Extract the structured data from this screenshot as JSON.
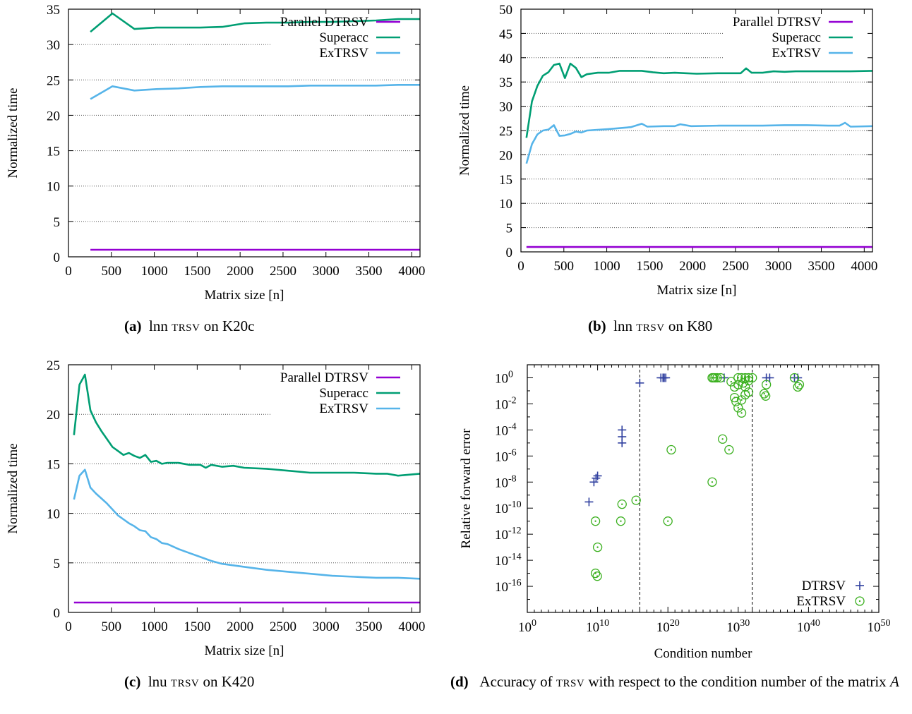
{
  "colors": {
    "parallel": "#9400d3",
    "superacc": "#009e73",
    "extrsv": "#56b4e9",
    "dtrsv": "#2f3f9f",
    "extrsv_marker": "#3bb01f"
  },
  "captions": [
    {
      "label": "(a)",
      "pre": "lnn ",
      "sc": "trsv",
      "post": " on K20c"
    },
    {
      "label": "(b)",
      "pre": "lnn ",
      "sc": "trsv",
      "post": " on K80"
    },
    {
      "label": "(c)",
      "pre": "lnu ",
      "sc": "trsv",
      "post": " on K420"
    },
    {
      "label": "(d)",
      "pre": "Accuracy of ",
      "sc": "trsv",
      "post": " with respect to the condition number of the matrix ",
      "italic": "A"
    }
  ],
  "chart_data": [
    {
      "type": "line",
      "xlabel": "Matrix size [n]",
      "ylabel": "Normalized time",
      "xlim": [
        0,
        4096
      ],
      "ylim": [
        0,
        35
      ],
      "xticks": [
        0,
        500,
        1000,
        1500,
        2000,
        2500,
        3000,
        3500,
        4000
      ],
      "yticks": [
        0,
        5,
        10,
        15,
        20,
        25,
        30,
        35
      ],
      "grid": "horizontal-dotted",
      "legend": "top-right",
      "series": [
        {
          "name": "Parallel DTRSV",
          "color_key": "parallel",
          "points": [
            [
              256,
              1.0
            ],
            [
              4096,
              1.0
            ]
          ]
        },
        {
          "name": "Superacc",
          "color_key": "superacc",
          "points": [
            [
              256,
              31.8
            ],
            [
              512,
              34.4
            ],
            [
              768,
              32.2
            ],
            [
              1024,
              32.4
            ],
            [
              1280,
              32.4
            ],
            [
              1536,
              32.4
            ],
            [
              1792,
              32.5
            ],
            [
              2048,
              33.0
            ],
            [
              2304,
              33.1
            ],
            [
              2560,
              33.1
            ],
            [
              2816,
              33.2
            ],
            [
              3072,
              33.2
            ],
            [
              3328,
              33.3
            ],
            [
              3584,
              33.4
            ],
            [
              3840,
              33.6
            ],
            [
              4096,
              33.6
            ]
          ]
        },
        {
          "name": "ExTRSV",
          "color_key": "extrsv",
          "points": [
            [
              256,
              22.3
            ],
            [
              512,
              24.1
            ],
            [
              768,
              23.5
            ],
            [
              1024,
              23.7
            ],
            [
              1280,
              23.8
            ],
            [
              1536,
              24.0
            ],
            [
              1792,
              24.1
            ],
            [
              2048,
              24.1
            ],
            [
              2304,
              24.1
            ],
            [
              2560,
              24.1
            ],
            [
              2816,
              24.2
            ],
            [
              3072,
              24.2
            ],
            [
              3328,
              24.2
            ],
            [
              3584,
              24.2
            ],
            [
              3840,
              24.3
            ],
            [
              4096,
              24.3
            ]
          ]
        }
      ]
    },
    {
      "type": "line",
      "xlabel": "Matrix size [n]",
      "ylabel": "Normalized time",
      "xlim": [
        0,
        4096
      ],
      "ylim": [
        0,
        50
      ],
      "xticks": [
        0,
        500,
        1000,
        1500,
        2000,
        2500,
        3000,
        3500,
        4000
      ],
      "yticks": [
        0,
        5,
        10,
        15,
        20,
        25,
        30,
        35,
        40,
        45,
        50
      ],
      "grid": "horizontal-dotted",
      "legend": "top-right",
      "series": [
        {
          "name": "Parallel DTRSV",
          "color_key": "parallel",
          "points": [
            [
              64,
              1.0
            ],
            [
              4096,
              1.0
            ]
          ]
        },
        {
          "name": "Superacc",
          "color_key": "superacc",
          "points": [
            [
              64,
              23.5
            ],
            [
              128,
              31.0
            ],
            [
              192,
              34.2
            ],
            [
              256,
              36.3
            ],
            [
              320,
              37.0
            ],
            [
              384,
              38.5
            ],
            [
              448,
              38.8
            ],
            [
              512,
              35.8
            ],
            [
              576,
              38.8
            ],
            [
              640,
              37.9
            ],
            [
              704,
              36.0
            ],
            [
              768,
              36.6
            ],
            [
              896,
              36.9
            ],
            [
              1024,
              36.9
            ],
            [
              1152,
              37.3
            ],
            [
              1280,
              37.3
            ],
            [
              1408,
              37.3
            ],
            [
              1536,
              37.0
            ],
            [
              1664,
              36.8
            ],
            [
              1792,
              36.9
            ],
            [
              1920,
              36.8
            ],
            [
              2048,
              36.7
            ],
            [
              2304,
              36.8
            ],
            [
              2560,
              36.8
            ],
            [
              2624,
              37.8
            ],
            [
              2688,
              36.9
            ],
            [
              2816,
              36.9
            ],
            [
              2944,
              37.2
            ],
            [
              3072,
              37.1
            ],
            [
              3200,
              37.2
            ],
            [
              3456,
              37.2
            ],
            [
              3712,
              37.2
            ],
            [
              3840,
              37.2
            ],
            [
              4096,
              37.3
            ]
          ]
        },
        {
          "name": "ExTRSV",
          "color_key": "extrsv",
          "points": [
            [
              64,
              18.2
            ],
            [
              128,
              22.2
            ],
            [
              192,
              24.2
            ],
            [
              256,
              25.0
            ],
            [
              320,
              25.2
            ],
            [
              384,
              26.1
            ],
            [
              448,
              23.9
            ],
            [
              512,
              24.0
            ],
            [
              576,
              24.3
            ],
            [
              640,
              24.8
            ],
            [
              704,
              24.6
            ],
            [
              768,
              25.0
            ],
            [
              1024,
              25.3
            ],
            [
              1280,
              25.7
            ],
            [
              1408,
              26.4
            ],
            [
              1472,
              25.8
            ],
            [
              1664,
              25.9
            ],
            [
              1792,
              25.9
            ],
            [
              1856,
              26.3
            ],
            [
              1984,
              25.9
            ],
            [
              2304,
              26.0
            ],
            [
              2560,
              26.0
            ],
            [
              2816,
              26.0
            ],
            [
              3072,
              26.1
            ],
            [
              3328,
              26.1
            ],
            [
              3584,
              26.0
            ],
            [
              3712,
              26.0
            ],
            [
              3776,
              26.6
            ],
            [
              3840,
              25.8
            ],
            [
              4096,
              25.9
            ]
          ]
        }
      ]
    },
    {
      "type": "line",
      "xlabel": "Matrix size [n]",
      "ylabel": "Normalized time",
      "xlim": [
        0,
        4096
      ],
      "ylim": [
        0,
        25
      ],
      "xticks": [
        0,
        500,
        1000,
        1500,
        2000,
        2500,
        3000,
        3500,
        4000
      ],
      "yticks": [
        0,
        5,
        10,
        15,
        20,
        25
      ],
      "grid": "horizontal-dotted",
      "legend": "top-right",
      "series": [
        {
          "name": "Parallel DTRSV",
          "color_key": "parallel",
          "points": [
            [
              64,
              1.0
            ],
            [
              4096,
              1.0
            ]
          ]
        },
        {
          "name": "Superacc",
          "color_key": "superacc",
          "points": [
            [
              64,
              17.9
            ],
            [
              128,
              23.0
            ],
            [
              192,
              24.0
            ],
            [
              256,
              20.4
            ],
            [
              320,
              19.2
            ],
            [
              384,
              18.3
            ],
            [
              448,
              17.5
            ],
            [
              512,
              16.7
            ],
            [
              576,
              16.3
            ],
            [
              640,
              15.9
            ],
            [
              704,
              16.1
            ],
            [
              768,
              15.8
            ],
            [
              832,
              15.6
            ],
            [
              896,
              15.9
            ],
            [
              960,
              15.2
            ],
            [
              1024,
              15.3
            ],
            [
              1088,
              15.0
            ],
            [
              1152,
              15.1
            ],
            [
              1280,
              15.1
            ],
            [
              1408,
              14.9
            ],
            [
              1536,
              14.9
            ],
            [
              1600,
              14.6
            ],
            [
              1664,
              14.9
            ],
            [
              1792,
              14.7
            ],
            [
              1920,
              14.8
            ],
            [
              2048,
              14.6
            ],
            [
              2304,
              14.5
            ],
            [
              2560,
              14.3
            ],
            [
              2816,
              14.1
            ],
            [
              3072,
              14.1
            ],
            [
              3328,
              14.1
            ],
            [
              3584,
              14.0
            ],
            [
              3712,
              14.0
            ],
            [
              3840,
              13.8
            ],
            [
              3968,
              13.9
            ],
            [
              4096,
              14.0
            ]
          ]
        },
        {
          "name": "ExTRSV",
          "color_key": "extrsv",
          "points": [
            [
              64,
              11.4
            ],
            [
              128,
              13.8
            ],
            [
              192,
              14.4
            ],
            [
              256,
              12.6
            ],
            [
              320,
              12.0
            ],
            [
              384,
              11.5
            ],
            [
              448,
              11.0
            ],
            [
              512,
              10.4
            ],
            [
              576,
              9.8
            ],
            [
              640,
              9.4
            ],
            [
              704,
              9.0
            ],
            [
              768,
              8.7
            ],
            [
              832,
              8.3
            ],
            [
              896,
              8.2
            ],
            [
              960,
              7.6
            ],
            [
              1024,
              7.4
            ],
            [
              1088,
              7.0
            ],
            [
              1152,
              6.9
            ],
            [
              1280,
              6.4
            ],
            [
              1408,
              6.0
            ],
            [
              1536,
              5.6
            ],
            [
              1664,
              5.2
            ],
            [
              1792,
              4.9
            ],
            [
              2048,
              4.6
            ],
            [
              2304,
              4.3
            ],
            [
              2560,
              4.1
            ],
            [
              2816,
              3.9
            ],
            [
              3072,
              3.7
            ],
            [
              3328,
              3.6
            ],
            [
              3584,
              3.5
            ],
            [
              3840,
              3.5
            ],
            [
              4096,
              3.4
            ]
          ]
        }
      ]
    },
    {
      "type": "scatter",
      "xlabel": "Condition number",
      "ylabel": "Relative forward error",
      "xscale": "log10",
      "yscale": "log10",
      "xlim": [
        1,
        1e+50
      ],
      "ylim": [
        1e-18,
        10
      ],
      "xticks": [
        "10^0",
        "10^10",
        "10^20",
        "10^30",
        "10^40",
        "10^50"
      ],
      "yticks": [
        "10^0",
        "10^-2",
        "10^-4",
        "10^-6",
        "10^-8",
        "10^-10",
        "10^-12",
        "10^-14",
        "10^-16"
      ],
      "vlines_condition": [
        1e+16,
        1e+32
      ],
      "legend": "bottom-right",
      "series": [
        {
          "name": "DTRSV",
          "marker": "plus",
          "color_key": "dtrsv",
          "points": [
            [
              600000000.0,
              3e-10
            ],
            [
              3000000000.0,
              1e-08
            ],
            [
              6000000000.0,
              2e-08
            ],
            [
              10000000000.0,
              3e-08
            ],
            [
              30000000000000.0,
              1e-05
            ],
            [
              30000000000000.0,
              3e-05
            ],
            [
              30000000000000.0,
              0.0001
            ],
            [
              1e+16,
              0.4
            ],
            [
              1e+19,
              1
            ],
            [
              2e+19,
              1
            ],
            [
              3e+19,
              1
            ],
            [
              5e+19,
              1
            ],
            [
              1e+28,
              1
            ],
            [
              1e+34,
              1
            ],
            [
              3e+34,
              1
            ],
            [
              1e+38,
              1
            ],
            [
              3e+38,
              1
            ]
          ]
        },
        {
          "name": "ExTRSV",
          "marker": "circle-dot",
          "color_key": "extrsv_marker",
          "points": [
            [
              5000000000.0,
              1e-11
            ],
            [
              10000000000.0,
              1e-13
            ],
            [
              5000000000.0,
              1e-15
            ],
            [
              9000000000.0,
              6e-16
            ],
            [
              30000000000000.0,
              2e-10
            ],
            [
              20000000000000.0,
              1e-11
            ],
            [
              3000000000000000.0,
              4e-10
            ],
            [
              1e+20,
              1e-11
            ],
            [
              3e+20,
              3e-06
            ],
            [
              2e+26,
              1e-08
            ],
            [
              2e+26,
              1
            ],
            [
              3e+26,
              1
            ],
            [
              5e+26,
              1
            ],
            [
              1e+27,
              1
            ],
            [
              3e+27,
              1
            ],
            [
              6e+27,
              2e-05
            ],
            [
              5e+28,
              3e-06
            ],
            [
              3e+29,
              0.03
            ],
            [
              5e+29,
              0.015
            ],
            [
              1e+30,
              0.005
            ],
            [
              3e+30,
              0.02
            ],
            [
              3e+30,
              0.002
            ],
            [
              1e+31,
              0.2
            ],
            [
              3e+31,
              0.6
            ],
            [
              1e+30,
              1
            ],
            [
              3e+30,
              1
            ],
            [
              1e+31,
              1
            ],
            [
              3e+31,
              1
            ],
            [
              1e+32,
              1
            ],
            [
              1e+29,
              0.5
            ],
            [
              1e+30,
              0.3
            ],
            [
              3e+29,
              0.2
            ],
            [
              5e+30,
              0.4
            ],
            [
              1e+31,
              0.05
            ],
            [
              3e+31,
              0.08
            ],
            [
              5e+33,
              0.06
            ],
            [
              8e+33,
              0.04
            ],
            [
              1e+34,
              0.3
            ],
            [
              3e+38,
              0.2
            ],
            [
              5e+38,
              0.3
            ],
            [
              1e+38,
              1
            ]
          ]
        }
      ]
    }
  ]
}
